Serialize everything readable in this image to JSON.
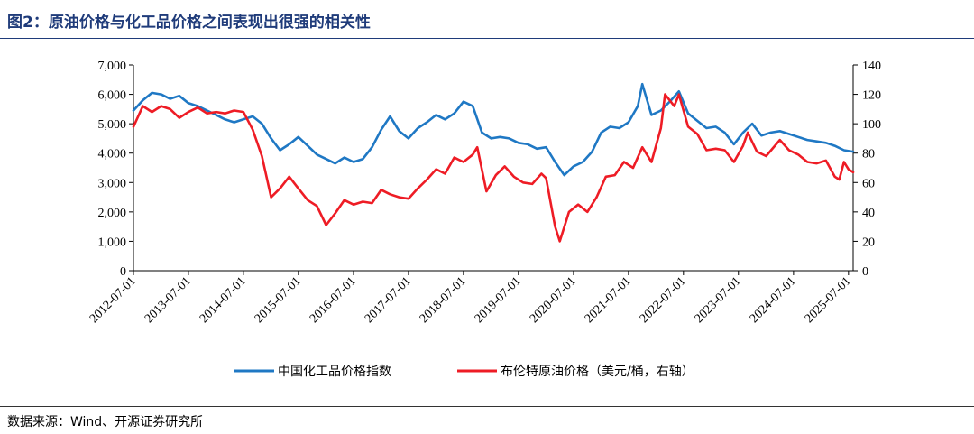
{
  "page": {
    "title": "图2：原油价格与化工品价格之间表现出很强的相关性",
    "source": "数据来源：Wind、开源证券研究所"
  },
  "colors": {
    "series_chem": "#1f78c4",
    "series_brent": "#ee1c25",
    "axis": "#000000"
  },
  "chart_data": {
    "type": "line",
    "title": "图2：原油价格与化工品价格之间表现出很强的相关性",
    "x_ticks": [
      "2012-07-01",
      "2013-07-01",
      "2014-07-01",
      "2015-07-01",
      "2016-07-01",
      "2017-07-01",
      "2018-07-01",
      "2019-07-01",
      "2020-07-01",
      "2021-07-01",
      "2022-07-01",
      "2023-07-01",
      "2024-07-01",
      "2025-07-01"
    ],
    "x_range": [
      "2012-07-01",
      "2025-08-01"
    ],
    "y_left": {
      "min": 0,
      "max": 7000,
      "step": 1000,
      "tick_labels": [
        "0",
        "1,000",
        "2,000",
        "3,000",
        "4,000",
        "5,000",
        "6,000",
        "7,000"
      ]
    },
    "y_right": {
      "min": 0,
      "max": 140,
      "step": 20,
      "tick_labels": [
        "0",
        "20",
        "40",
        "60",
        "80",
        "100",
        "120",
        "140"
      ]
    },
    "grid": false,
    "legend_position": "bottom-center",
    "series": [
      {
        "name": "中国化工品价格指数",
        "axis": "left",
        "color": "#1f78c4",
        "points": [
          [
            "2012-07-01",
            5450
          ],
          [
            "2012-09-01",
            5800
          ],
          [
            "2012-11-01",
            6050
          ],
          [
            "2013-01-01",
            6000
          ],
          [
            "2013-03-01",
            5850
          ],
          [
            "2013-05-01",
            5950
          ],
          [
            "2013-07-01",
            5700
          ],
          [
            "2013-09-01",
            5600
          ],
          [
            "2013-11-01",
            5450
          ],
          [
            "2014-01-01",
            5300
          ],
          [
            "2014-03-01",
            5150
          ],
          [
            "2014-05-01",
            5050
          ],
          [
            "2014-07-01",
            5150
          ],
          [
            "2014-09-01",
            5250
          ],
          [
            "2014-11-01",
            5000
          ],
          [
            "2015-01-01",
            4500
          ],
          [
            "2015-03-01",
            4100
          ],
          [
            "2015-05-01",
            4300
          ],
          [
            "2015-07-01",
            4550
          ],
          [
            "2015-09-01",
            4250
          ],
          [
            "2015-11-01",
            3950
          ],
          [
            "2016-01-01",
            3800
          ],
          [
            "2016-03-01",
            3650
          ],
          [
            "2016-05-01",
            3850
          ],
          [
            "2016-07-01",
            3700
          ],
          [
            "2016-09-01",
            3800
          ],
          [
            "2016-11-01",
            4200
          ],
          [
            "2017-01-01",
            4800
          ],
          [
            "2017-03-01",
            5250
          ],
          [
            "2017-05-01",
            4750
          ],
          [
            "2017-07-01",
            4500
          ],
          [
            "2017-09-01",
            4850
          ],
          [
            "2017-11-01",
            5050
          ],
          [
            "2018-01-01",
            5300
          ],
          [
            "2018-03-01",
            5150
          ],
          [
            "2018-05-01",
            5350
          ],
          [
            "2018-07-01",
            5750
          ],
          [
            "2018-09-01",
            5600
          ],
          [
            "2018-11-01",
            4700
          ],
          [
            "2019-01-01",
            4500
          ],
          [
            "2019-03-01",
            4550
          ],
          [
            "2019-05-01",
            4500
          ],
          [
            "2019-07-01",
            4350
          ],
          [
            "2019-09-01",
            4300
          ],
          [
            "2019-11-01",
            4150
          ],
          [
            "2020-01-01",
            4200
          ],
          [
            "2020-03-01",
            3700
          ],
          [
            "2020-05-01",
            3250
          ],
          [
            "2020-07-01",
            3550
          ],
          [
            "2020-09-01",
            3700
          ],
          [
            "2020-11-01",
            4050
          ],
          [
            "2021-01-01",
            4700
          ],
          [
            "2021-03-01",
            4900
          ],
          [
            "2021-05-01",
            4850
          ],
          [
            "2021-07-01",
            5050
          ],
          [
            "2021-09-01",
            5600
          ],
          [
            "2021-10-01",
            6350
          ],
          [
            "2021-12-01",
            5300
          ],
          [
            "2022-02-01",
            5450
          ],
          [
            "2022-04-01",
            5750
          ],
          [
            "2022-06-01",
            6100
          ],
          [
            "2022-08-01",
            5350
          ],
          [
            "2022-10-01",
            5100
          ],
          [
            "2022-12-01",
            4850
          ],
          [
            "2023-02-01",
            4900
          ],
          [
            "2023-04-01",
            4700
          ],
          [
            "2023-06-01",
            4300
          ],
          [
            "2023-08-01",
            4700
          ],
          [
            "2023-10-01",
            5000
          ],
          [
            "2023-12-01",
            4600
          ],
          [
            "2024-02-01",
            4700
          ],
          [
            "2024-04-01",
            4750
          ],
          [
            "2024-06-01",
            4650
          ],
          [
            "2024-08-01",
            4550
          ],
          [
            "2024-10-01",
            4450
          ],
          [
            "2024-12-01",
            4400
          ],
          [
            "2025-02-01",
            4350
          ],
          [
            "2025-04-01",
            4250
          ],
          [
            "2025-06-01",
            4100
          ],
          [
            "2025-08-01",
            4050
          ]
        ]
      },
      {
        "name": "布伦特原油价格（美元/桶，右轴）",
        "axis": "right",
        "color": "#ee1c25",
        "points": [
          [
            "2012-07-01",
            98
          ],
          [
            "2012-09-01",
            112
          ],
          [
            "2012-11-01",
            108
          ],
          [
            "2013-01-01",
            112
          ],
          [
            "2013-03-01",
            110
          ],
          [
            "2013-05-01",
            104
          ],
          [
            "2013-07-01",
            108
          ],
          [
            "2013-09-01",
            111
          ],
          [
            "2013-11-01",
            107
          ],
          [
            "2014-01-01",
            108
          ],
          [
            "2014-03-01",
            107
          ],
          [
            "2014-05-01",
            109
          ],
          [
            "2014-07-01",
            108
          ],
          [
            "2014-09-01",
            96
          ],
          [
            "2014-11-01",
            78
          ],
          [
            "2015-01-01",
            50
          ],
          [
            "2015-03-01",
            56
          ],
          [
            "2015-05-01",
            64
          ],
          [
            "2015-07-01",
            56
          ],
          [
            "2015-09-01",
            48
          ],
          [
            "2015-11-01",
            44
          ],
          [
            "2016-01-01",
            31
          ],
          [
            "2016-03-01",
            39
          ],
          [
            "2016-05-01",
            48
          ],
          [
            "2016-07-01",
            45
          ],
          [
            "2016-09-01",
            47
          ],
          [
            "2016-11-01",
            46
          ],
          [
            "2017-01-01",
            55
          ],
          [
            "2017-03-01",
            52
          ],
          [
            "2017-05-01",
            50
          ],
          [
            "2017-07-01",
            49
          ],
          [
            "2017-09-01",
            56
          ],
          [
            "2017-11-01",
            62
          ],
          [
            "2018-01-01",
            69
          ],
          [
            "2018-03-01",
            66
          ],
          [
            "2018-05-01",
            77
          ],
          [
            "2018-07-01",
            74
          ],
          [
            "2018-09-01",
            79
          ],
          [
            "2018-10-01",
            84
          ],
          [
            "2018-12-01",
            54
          ],
          [
            "2019-02-01",
            65
          ],
          [
            "2019-04-01",
            71
          ],
          [
            "2019-06-01",
            64
          ],
          [
            "2019-08-01",
            60
          ],
          [
            "2019-10-01",
            59
          ],
          [
            "2019-12-01",
            66
          ],
          [
            "2020-01-01",
            63
          ],
          [
            "2020-03-01",
            30
          ],
          [
            "2020-04-01",
            20
          ],
          [
            "2020-06-01",
            40
          ],
          [
            "2020-08-01",
            45
          ],
          [
            "2020-10-01",
            40
          ],
          [
            "2020-12-01",
            50
          ],
          [
            "2021-02-01",
            64
          ],
          [
            "2021-04-01",
            65
          ],
          [
            "2021-06-01",
            74
          ],
          [
            "2021-08-01",
            70
          ],
          [
            "2021-10-01",
            84
          ],
          [
            "2021-12-01",
            74
          ],
          [
            "2022-02-01",
            97
          ],
          [
            "2022-03-01",
            120
          ],
          [
            "2022-05-01",
            112
          ],
          [
            "2022-06-01",
            120
          ],
          [
            "2022-08-01",
            98
          ],
          [
            "2022-10-01",
            93
          ],
          [
            "2022-12-01",
            82
          ],
          [
            "2023-02-01",
            83
          ],
          [
            "2023-04-01",
            82
          ],
          [
            "2023-06-01",
            74
          ],
          [
            "2023-08-01",
            85
          ],
          [
            "2023-09-01",
            94
          ],
          [
            "2023-11-01",
            81
          ],
          [
            "2024-01-01",
            78
          ],
          [
            "2024-04-01",
            89
          ],
          [
            "2024-06-01",
            82
          ],
          [
            "2024-08-01",
            79
          ],
          [
            "2024-10-01",
            74
          ],
          [
            "2024-12-01",
            73
          ],
          [
            "2025-02-01",
            75
          ],
          [
            "2025-04-01",
            64
          ],
          [
            "2025-05-01",
            62
          ],
          [
            "2025-06-01",
            74
          ],
          [
            "2025-07-01",
            69
          ],
          [
            "2025-08-01",
            67
          ]
        ]
      }
    ]
  }
}
